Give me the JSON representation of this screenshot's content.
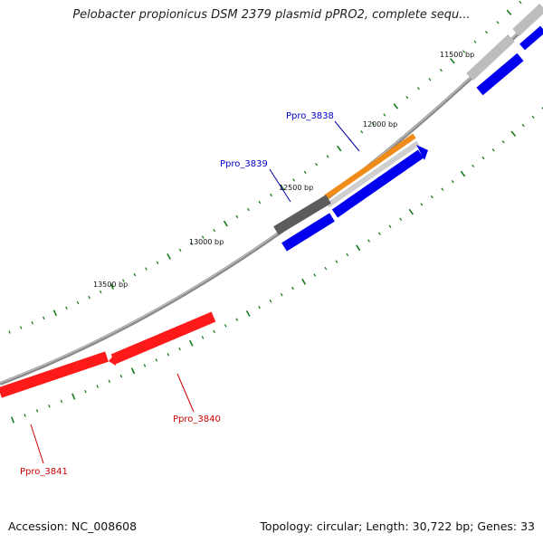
{
  "title": "Pelobacter propionicus DSM 2379 plasmid pPRO2, complete sequ...",
  "footer": {
    "accession": "Accession: NC_008608",
    "summary": "Topology: circular; Length: 30,722 bp; Genes: 33"
  },
  "scale": {
    "labels": [
      "11500 bp",
      "12000 bp",
      "12500 bp",
      "13000 bp",
      "13500 bp"
    ]
  },
  "genes": [
    {
      "label": "Ppro_3838",
      "color": "#0000cc"
    },
    {
      "label": "Ppro_3839",
      "color": "#0000cc"
    },
    {
      "label": "Ppro_3840",
      "color": "#cc0000"
    },
    {
      "label": "Ppro_3841",
      "color": "#cc0000"
    }
  ],
  "colors": {
    "backbone": "#808080",
    "forward_cds": "#0000ff",
    "reverse_cds": "#ff0000",
    "tick": "#1a7a1a",
    "highlight_orange": "#f08c1a",
    "dark_gray_feature": "#606060",
    "light_gray_feature": "#c8c8c8"
  }
}
